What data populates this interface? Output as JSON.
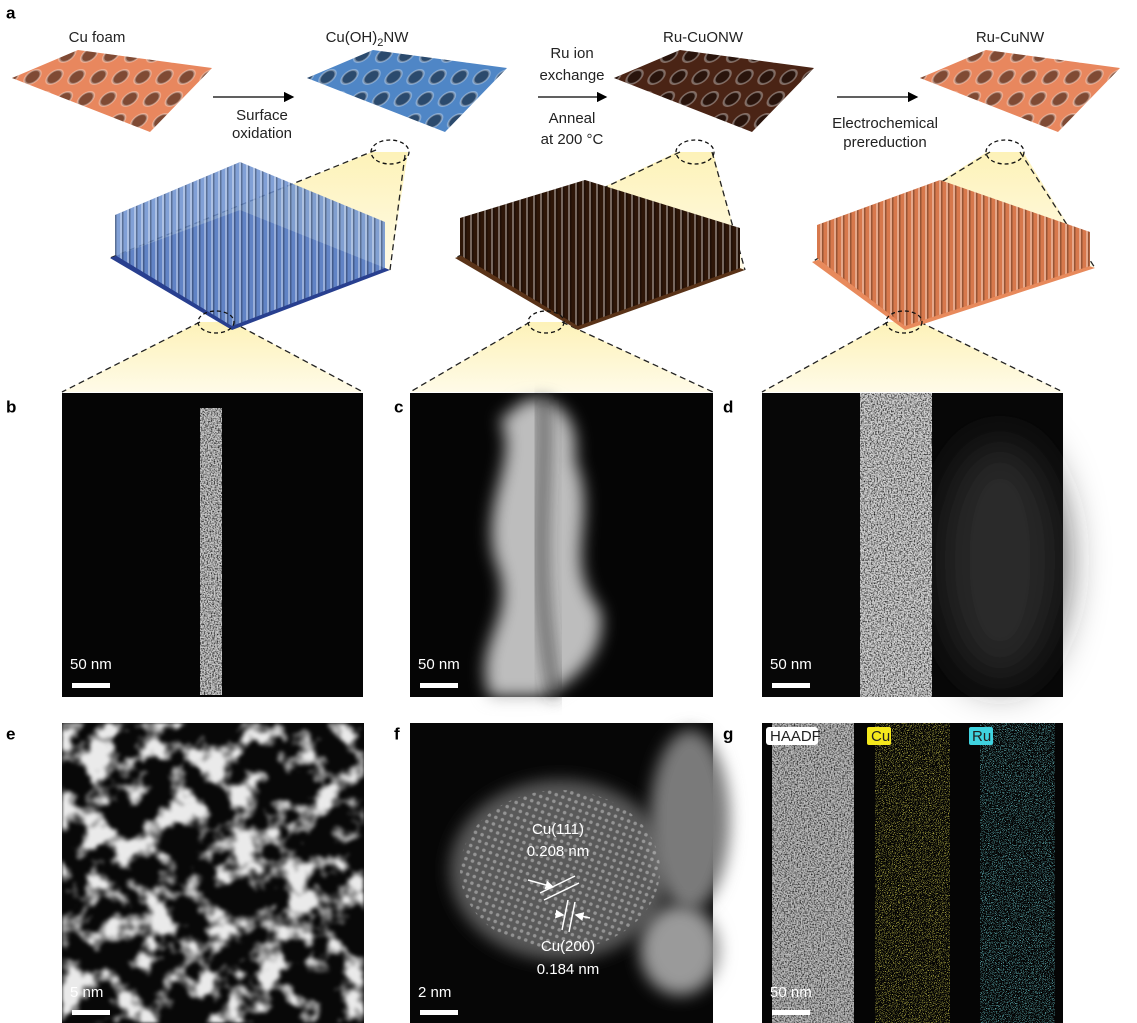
{
  "schematic": {
    "panel": "a",
    "stages": [
      {
        "label": "Cu foam"
      },
      {
        "label": {
          "main": "Cu(OH)",
          "sub": "2",
          "suffix": "NW"
        }
      },
      {
        "label": "Ru-CuONW"
      },
      {
        "label": "Ru-CuNW"
      }
    ],
    "steps": [
      {
        "lines": [
          "Surface",
          "oxidation"
        ]
      },
      {
        "above": [
          "Ru ion",
          "exchange"
        ],
        "below": [
          "Anneal",
          "at 200 °C"
        ]
      },
      {
        "lines": [
          "Electrochemical",
          "prereduction"
        ]
      }
    ]
  },
  "micrographs": [
    {
      "panel": "b",
      "scale_bar": "50 nm"
    },
    {
      "panel": "c",
      "scale_bar": "50 nm"
    },
    {
      "panel": "d",
      "scale_bar": "50 nm"
    },
    {
      "panel": "e",
      "scale_bar": "5 nm"
    },
    {
      "panel": "f",
      "scale_bar": "2 nm",
      "annotations": [
        {
          "lines": [
            "Cu(111)",
            "0.208 nm"
          ]
        },
        {
          "lines": [
            "Cu(200)",
            "0.184 nm"
          ]
        }
      ]
    },
    {
      "panel": "g",
      "scale_bar": "50 nm",
      "channels": [
        "HAADF",
        "Cu",
        "Ru"
      ]
    }
  ]
}
